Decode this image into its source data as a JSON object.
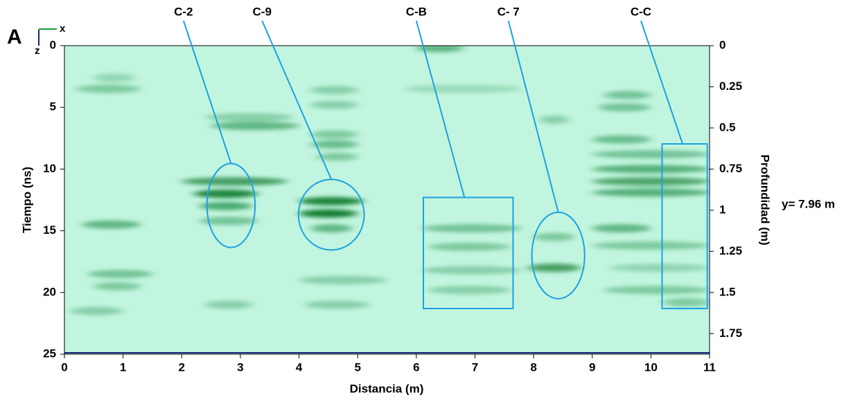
{
  "chart_data": {
    "type": "radargram",
    "panel_label": "A",
    "axis_indicator": {
      "x": "x",
      "z": "z"
    },
    "xlabel": "Distancia (m)",
    "ylabel": "Tiempo (ns)",
    "y2label": "Profundidad (m)",
    "side_note": "y= 7.96 m",
    "xlim": [
      0,
      11
    ],
    "xticks": [
      0,
      1,
      2,
      3,
      4,
      5,
      6,
      7,
      8,
      9,
      10,
      11
    ],
    "ylim": [
      0,
      25
    ],
    "yticks": [
      0,
      5,
      10,
      15,
      20,
      25
    ],
    "y2lim": [
      0,
      1.875
    ],
    "y2ticks": [
      0,
      0.25,
      0.5,
      0.75,
      1,
      1.25,
      1.5,
      1.75
    ],
    "background": "#c2f5df",
    "band_color": "#0a7a2c",
    "annotation_color": "#1ba1e2",
    "bands": [
      [
        0.2,
        1.3,
        3.5,
        0.35
      ],
      [
        0.5,
        1.2,
        2.6,
        0.25
      ],
      [
        0.3,
        1.3,
        14.5,
        0.5
      ],
      [
        0.4,
        1.5,
        18.5,
        0.4
      ],
      [
        0.5,
        1.3,
        19.5,
        0.35
      ],
      [
        0.1,
        1.0,
        21.5,
        0.3
      ],
      [
        2.0,
        3.8,
        11.0,
        0.7
      ],
      [
        2.2,
        3.3,
        12.0,
        0.9
      ],
      [
        2.3,
        3.2,
        13.0,
        0.6
      ],
      [
        2.3,
        3.3,
        14.2,
        0.4
      ],
      [
        2.5,
        4.0,
        6.5,
        0.5
      ],
      [
        2.4,
        3.9,
        5.8,
        0.3
      ],
      [
        2.4,
        3.2,
        21.0,
        0.3
      ],
      [
        4.0,
        5.1,
        12.6,
        0.9
      ],
      [
        4.0,
        5.0,
        13.6,
        0.95
      ],
      [
        4.2,
        4.9,
        14.8,
        0.5
      ],
      [
        4.2,
        5.0,
        8.0,
        0.45
      ],
      [
        4.3,
        5.0,
        9.0,
        0.35
      ],
      [
        4.2,
        5.0,
        7.2,
        0.35
      ],
      [
        4.2,
        5.0,
        3.6,
        0.3
      ],
      [
        4.2,
        5.0,
        4.8,
        0.3
      ],
      [
        4.0,
        5.5,
        19.0,
        0.3
      ],
      [
        4.1,
        5.2,
        21.0,
        0.3
      ],
      [
        6.1,
        7.8,
        14.8,
        0.4
      ],
      [
        6.2,
        7.6,
        16.3,
        0.35
      ],
      [
        6.1,
        7.8,
        18.2,
        0.3
      ],
      [
        6.2,
        7.6,
        19.8,
        0.3
      ],
      [
        6.0,
        6.8,
        0.2,
        0.5
      ],
      [
        5.8,
        7.8,
        3.5,
        0.2
      ],
      [
        7.9,
        8.8,
        18.0,
        0.7
      ],
      [
        8.0,
        8.7,
        15.5,
        0.35
      ],
      [
        8.1,
        8.6,
        6.0,
        0.3
      ],
      [
        9.0,
        11,
        10.0,
        0.55
      ],
      [
        9.0,
        11,
        11.0,
        0.65
      ],
      [
        9.0,
        11,
        11.9,
        0.55
      ],
      [
        9.2,
        10,
        4.0,
        0.4
      ],
      [
        9.1,
        10,
        5.0,
        0.4
      ],
      [
        9.0,
        10,
        7.6,
        0.45
      ],
      [
        9.0,
        11,
        8.8,
        0.4
      ],
      [
        9.0,
        10,
        14.8,
        0.5
      ],
      [
        9.0,
        11,
        16.2,
        0.35
      ],
      [
        9.2,
        11,
        19.8,
        0.35
      ],
      [
        9.3,
        11,
        18.0,
        0.25
      ],
      [
        10.2,
        11,
        20.8,
        0.35
      ]
    ],
    "annotations": [
      {
        "label": "C-2",
        "label_x": 2.03,
        "shape": "ellipse",
        "x": 2.84,
        "t": 12.95,
        "rx": 0.41,
        "rt": 3.4
      },
      {
        "label": "C-9",
        "label_x": 3.37,
        "shape": "ellipse",
        "x": 4.55,
        "t": 13.7,
        "rx": 0.56,
        "rt": 2.86
      },
      {
        "label": "C-B",
        "label_x": 6.0,
        "shape": "rect",
        "x": [
          6.12,
          7.65
        ],
        "t": [
          12.3,
          21.3
        ],
        "lead_x": 6.82
      },
      {
        "label": "C- 7",
        "label_x": 7.57,
        "shape": "ellipse",
        "x": 8.42,
        "t": 17.0,
        "rx": 0.45,
        "rt": 3.5
      },
      {
        "label": "C-C",
        "label_x": 9.83,
        "shape": "rect",
        "x": [
          10.19,
          10.96
        ],
        "t": [
          7.96,
          21.3
        ],
        "lead_x": 10.54
      }
    ]
  }
}
